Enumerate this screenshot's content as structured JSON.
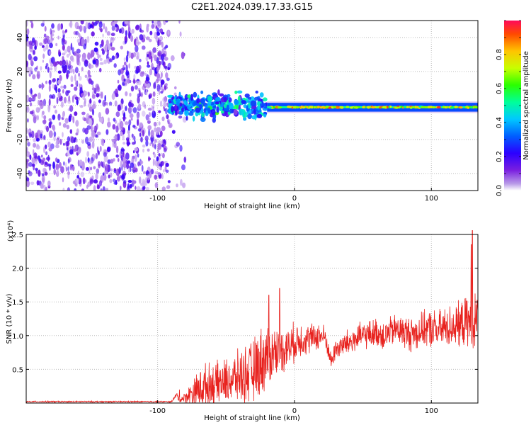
{
  "figure": {
    "title": "C2E1.2024.039.17.33.G15"
  },
  "colors": {
    "snr_line": "#e8231f",
    "grid": "#bbbbbb",
    "spectrogram_noise": "#7a1fe0",
    "spectrogram_palette": [
      "#ffffff",
      "#e4c9f7",
      "#8b2be2",
      "#3a00ff",
      "#0066ff",
      "#00d2ff",
      "#00ff7f",
      "#d8ff00",
      "#ff9a00",
      "#ff1e3c"
    ]
  },
  "chart_data": [
    {
      "type": "heatmap",
      "xlabel": "Height of straight line (km)",
      "ylabel": "Frequency (Hz)",
      "xlim": [
        -196,
        134
      ],
      "ylim": [
        -50,
        50
      ],
      "x_ticks": [
        -100,
        0,
        100
      ],
      "x_tick_labels": [
        "-100",
        "0",
        "100"
      ],
      "y_ticks": [
        -40,
        -20,
        0,
        20,
        40
      ],
      "y_tick_labels": [
        "-40",
        "-20",
        "0",
        "20",
        "40"
      ],
      "grid": true,
      "colorbar": {
        "label": "Normalized spectral amplitude",
        "range": [
          0,
          1
        ],
        "ticks": [
          0.0,
          0.2,
          0.4,
          0.6,
          0.8
        ],
        "tick_labels": [
          "0.0",
          "0.2",
          "0.4",
          "0.6",
          "0.8"
        ],
        "colormap": "rainbow"
      },
      "regions": [
        {
          "x_range": [
            -196,
            -92
          ],
          "freq_range": [
            -50,
            50
          ],
          "character": "broadband noise",
          "amplitude": 0.1
        },
        {
          "x_range": [
            -92,
            -80
          ],
          "freq_range": [
            -50,
            50
          ],
          "character": "sparse noise",
          "amplitude": 0.05
        },
        {
          "x_range": [
            -92,
            -20
          ],
          "freq_center": 0,
          "freq_spread": 10,
          "character": "scattered signal",
          "amplitude": 0.35
        },
        {
          "x_range": [
            -20,
            134
          ],
          "freq_center": -1,
          "freq_spread": 3,
          "character": "steady carrier",
          "amplitude": 0.75
        }
      ]
    },
    {
      "type": "line",
      "xlabel": "Height of straight line (km)",
      "ylabel": "SNR (10 * v/v)",
      "y_multiplier_label": "(x10⁴)",
      "xlim": [
        -196,
        134
      ],
      "ylim": [
        0,
        2.5
      ],
      "x_ticks": [
        -100,
        0,
        100
      ],
      "x_tick_labels": [
        "-100",
        "0",
        "100"
      ],
      "y_ticks": [
        0.5,
        1.0,
        1.5,
        2.0,
        2.5
      ],
      "y_tick_labels": [
        "0.5",
        "1.0",
        "1.5",
        "2.0",
        "2.5"
      ],
      "grid": true,
      "series": [
        {
          "color": "#e8231f",
          "x": [
            -196,
            -180,
            -160,
            -140,
            -120,
            -100,
            -90,
            -86,
            -84,
            -80,
            -75,
            -70,
            -65,
            -60,
            -55,
            -50,
            -45,
            -40,
            -35,
            -30,
            -25,
            -20,
            -15,
            -10,
            -5,
            0,
            5,
            10,
            15,
            20,
            23,
            25,
            27,
            30,
            35,
            40,
            45,
            50,
            55,
            60,
            65,
            70,
            75,
            80,
            85,
            90,
            95,
            100,
            105,
            110,
            115,
            120,
            125,
            130,
            134
          ],
          "y": [
            0.02,
            0.02,
            0.02,
            0.02,
            0.02,
            0.02,
            0.02,
            0.12,
            0.05,
            0.08,
            0.15,
            0.2,
            0.25,
            0.28,
            0.3,
            0.32,
            0.35,
            0.4,
            0.42,
            0.48,
            0.6,
            0.7,
            0.75,
            0.8,
            0.82,
            0.9,
            0.95,
            0.95,
            0.98,
            1.0,
            0.95,
            0.75,
            0.6,
            0.8,
            0.85,
            0.9,
            0.95,
            1.0,
            1.02,
            1.05,
            1.0,
            1.05,
            1.1,
            1.05,
            1.02,
            1.05,
            1.1,
            1.1,
            1.08,
            1.12,
            1.15,
            1.15,
            1.2,
            1.2,
            1.25
          ],
          "noise_amplitude": [
            0.01,
            0.01,
            0.01,
            0.01,
            0.01,
            0.01,
            0.01,
            0.04,
            0.05,
            0.07,
            0.18,
            0.28,
            0.32,
            0.3,
            0.3,
            0.32,
            0.34,
            0.38,
            0.42,
            0.45,
            0.5,
            0.45,
            0.38,
            0.34,
            0.3,
            0.28,
            0.25,
            0.22,
            0.2,
            0.2,
            0.15,
            0.12,
            0.12,
            0.15,
            0.18,
            0.2,
            0.2,
            0.2,
            0.2,
            0.2,
            0.22,
            0.22,
            0.22,
            0.24,
            0.25,
            0.25,
            0.25,
            0.28,
            0.28,
            0.3,
            0.3,
            0.32,
            0.35,
            0.38,
            0.4
          ],
          "spikes": [
            {
              "x": -84,
              "y": 0.2
            },
            {
              "x": -11,
              "y": 1.7
            },
            {
              "x": -19,
              "y": 1.6
            },
            {
              "x": 130,
              "y": 2.6
            },
            {
              "x": 129,
              "y": 2.35
            }
          ]
        }
      ]
    }
  ]
}
